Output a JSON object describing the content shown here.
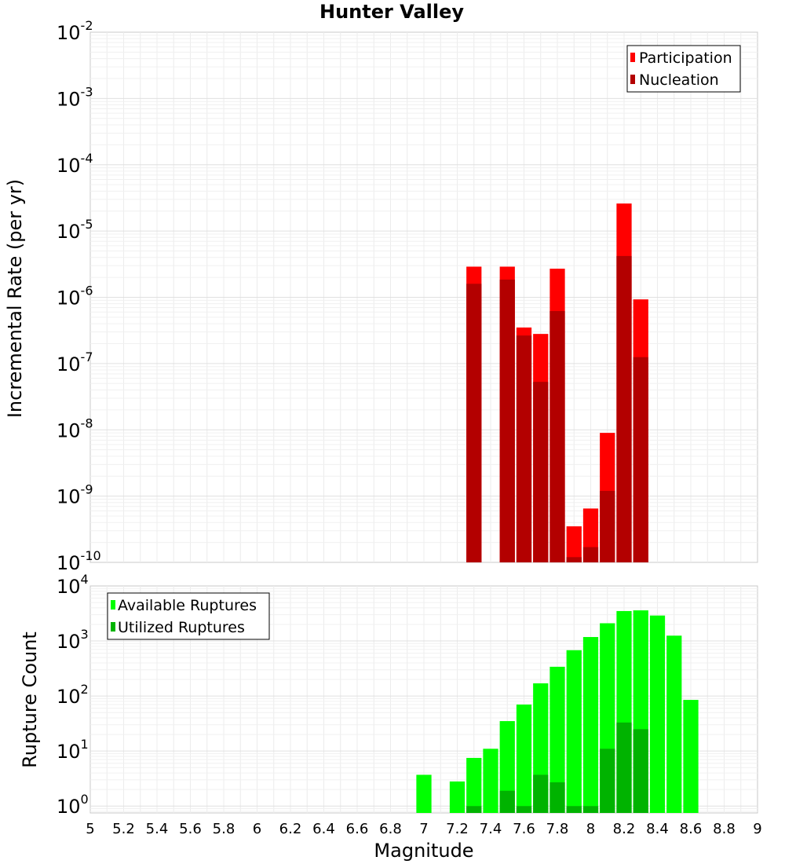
{
  "chart_data": [
    {
      "type": "bar",
      "title": "Hunter Valley",
      "xlabel": "",
      "ylabel": "Incremental Rate (per yr)",
      "xlim": [
        5,
        9
      ],
      "ylim": [
        1e-10,
        0.01
      ],
      "yscale": "log",
      "ytick_base": "10",
      "yticks_exp": [
        "-10",
        "-9",
        "-8",
        "-7",
        "-6",
        "-5",
        "-4",
        "-3",
        "-2"
      ],
      "grid": true,
      "legend_position": "top-right",
      "colors": {
        "Participation": "#ff0000",
        "Nucleation": "#b30000"
      },
      "x": [
        7.3,
        7.5,
        7.6,
        7.7,
        7.8,
        7.9,
        8.0,
        8.1,
        8.2,
        8.3
      ],
      "series": [
        {
          "name": "Participation",
          "values": [
            2.9e-06,
            2.9e-06,
            3.5e-07,
            2.8e-07,
            2.7e-06,
            3.5e-10,
            6.5e-10,
            9e-09,
            2.6e-05,
            9.3e-07
          ]
        },
        {
          "name": "Nucleation",
          "values": [
            1.6e-06,
            1.85e-06,
            2.65e-07,
            5.3e-08,
            6.2e-07,
            1.2e-10,
            1.7e-10,
            1.2e-09,
            4.2e-06,
            1.25e-07
          ]
        }
      ]
    },
    {
      "type": "bar",
      "title": "",
      "xlabel": "Magnitude",
      "ylabel": "Rupture Count",
      "xlim": [
        5,
        9
      ],
      "ylim": [
        0.75,
        10000
      ],
      "yscale": "log",
      "ytick_base": "10",
      "yticks_exp": [
        "0",
        "1",
        "2",
        "3",
        "4"
      ],
      "xticks": [
        "5",
        "5.2",
        "5.4",
        "5.6",
        "5.8",
        "6",
        "6.2",
        "6.4",
        "6.6",
        "6.8",
        "7",
        "7.2",
        "7.4",
        "7.6",
        "7.8",
        "8",
        "8.2",
        "8.4",
        "8.6",
        "8.8",
        "9"
      ],
      "grid": true,
      "legend_position": "top-left",
      "colors": {
        "Available Ruptures": "#00ff00",
        "Utilized Ruptures": "#00b300"
      },
      "series": [
        {
          "name": "Available Ruptures",
          "x": [
            7.0,
            7.2,
            7.3,
            7.4,
            7.5,
            7.6,
            7.7,
            7.8,
            7.9,
            8.0,
            8.1,
            8.2,
            8.3,
            8.4,
            8.5,
            8.6
          ],
          "values": [
            3.7,
            2.8,
            7.5,
            11,
            35,
            70,
            170,
            340,
            680,
            1180,
            2100,
            3500,
            3600,
            2900,
            1250,
            85
          ]
        },
        {
          "name": "Utilized Ruptures",
          "x": [
            7.3,
            7.5,
            7.6,
            7.7,
            7.8,
            7.9,
            8.0,
            8.1,
            8.2,
            8.3
          ],
          "values": [
            1,
            1.9,
            1,
            3.7,
            2.7,
            1,
            1,
            11,
            33,
            25
          ]
        }
      ]
    }
  ]
}
